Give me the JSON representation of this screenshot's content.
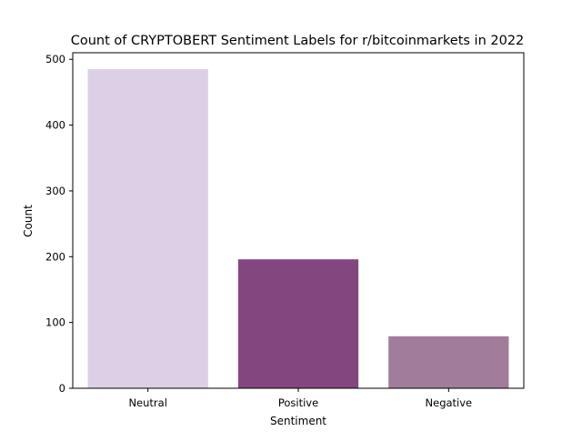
{
  "chart_data": {
    "type": "bar",
    "title": "Count of CRYPTOBERT Sentiment Labels for r/bitcoinmarkets in 2022",
    "xlabel": "Sentiment",
    "ylabel": "Count",
    "categories": [
      "Neutral",
      "Positive",
      "Negative"
    ],
    "values": [
      485,
      196,
      79
    ],
    "bar_colors": [
      "#dbd0e6",
      "#84467f",
      "#a27c9b"
    ],
    "ylim": [
      0,
      510
    ],
    "yticks": [
      0,
      100,
      200,
      300,
      400,
      500
    ],
    "grid": false,
    "legend": "none"
  }
}
